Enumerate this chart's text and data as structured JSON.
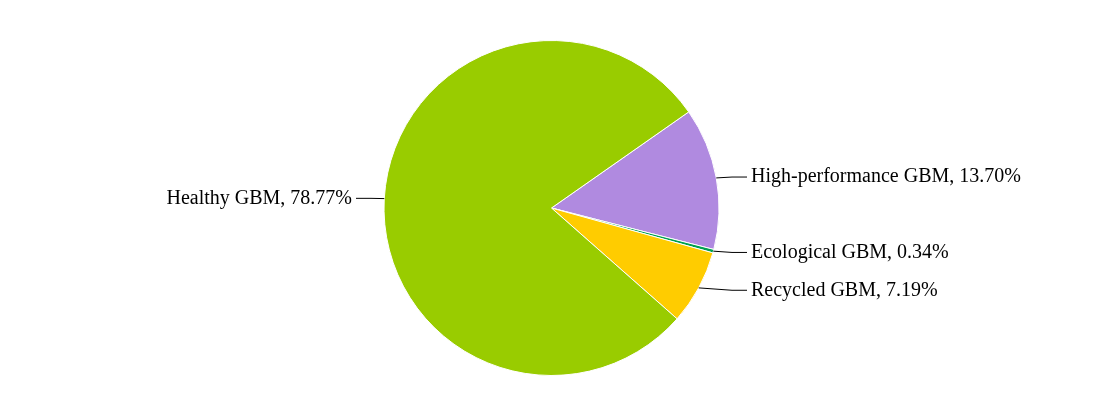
{
  "chart_data": {
    "type": "pie",
    "categories": [
      "High-performance GBM",
      "Ecological GBM",
      "Recycled GBM",
      "Healthy GBM"
    ],
    "values": [
      13.7,
      0.34,
      7.19,
      78.77
    ],
    "colors": [
      "#b08ae0",
      "#00a050",
      "#ffcc00",
      "#99cc00"
    ],
    "value_labels": [
      "13.70%",
      "0.34%",
      "7.19%",
      "78.77%"
    ],
    "legend": false
  }
}
